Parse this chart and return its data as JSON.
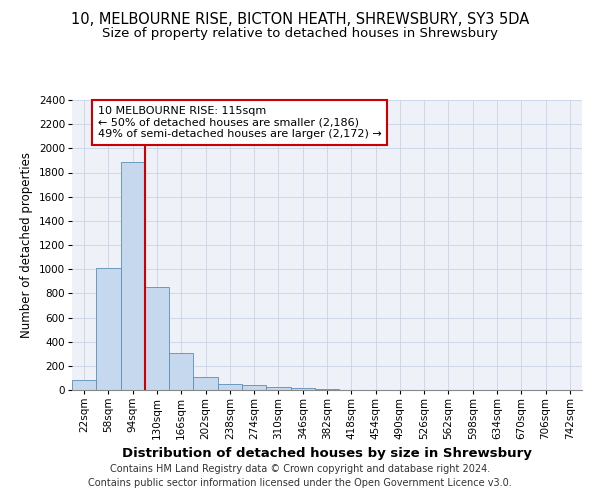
{
  "title": "10, MELBOURNE RISE, BICTON HEATH, SHREWSBURY, SY3 5DA",
  "subtitle": "Size of property relative to detached houses in Shrewsbury",
  "xlabel": "Distribution of detached houses by size in Shrewsbury",
  "ylabel": "Number of detached properties",
  "bin_labels": [
    "22sqm",
    "58sqm",
    "94sqm",
    "130sqm",
    "166sqm",
    "202sqm",
    "238sqm",
    "274sqm",
    "310sqm",
    "346sqm",
    "382sqm",
    "418sqm",
    "454sqm",
    "490sqm",
    "526sqm",
    "562sqm",
    "598sqm",
    "634sqm",
    "670sqm",
    "706sqm",
    "742sqm"
  ],
  "bar_heights": [
    80,
    1010,
    1890,
    855,
    310,
    110,
    50,
    40,
    25,
    15,
    5,
    0,
    0,
    0,
    0,
    0,
    0,
    0,
    0,
    0,
    0
  ],
  "bar_color": "#c5d8ed",
  "bar_edge_color": "#5b8db8",
  "grid_color": "#c8d4e8",
  "background_color": "#eef2f8",
  "vline_x_index": 2,
  "vline_color": "#cc0000",
  "annotation_text": "10 MELBOURNE RISE: 115sqm\n← 50% of detached houses are smaller (2,186)\n49% of semi-detached houses are larger (2,172) →",
  "annotation_box_facecolor": "#ffffff",
  "annotation_box_edgecolor": "#cc0000",
  "footer_line1": "Contains HM Land Registry data © Crown copyright and database right 2024.",
  "footer_line2": "Contains public sector information licensed under the Open Government Licence v3.0.",
  "ylim": [
    0,
    2400
  ],
  "yticks": [
    0,
    200,
    400,
    600,
    800,
    1000,
    1200,
    1400,
    1600,
    1800,
    2000,
    2200,
    2400
  ],
  "title_fontsize": 10.5,
  "subtitle_fontsize": 9.5,
  "xlabel_fontsize": 9.5,
  "ylabel_fontsize": 8.5,
  "tick_fontsize": 7.5,
  "annotation_fontsize": 8,
  "footer_fontsize": 7
}
